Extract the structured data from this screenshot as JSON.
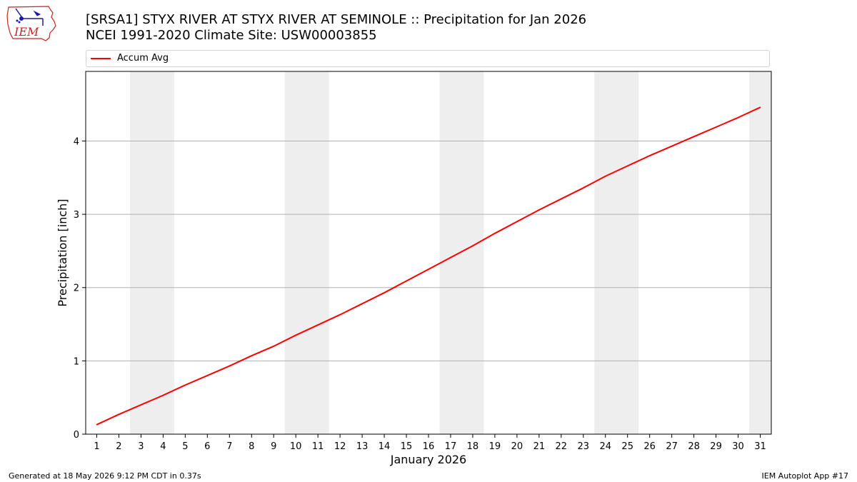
{
  "header": {
    "title_line1": "[SRSA1] STYX RIVER  AT STYX RIVER AT SEMINOLE :: Precipitation for Jan 2026",
    "title_line2": "NCEI 1991-2020 Climate Site: USW00003855"
  },
  "logo": {
    "text": "IEM",
    "text_color": "#cc2222",
    "outline_color": "#cc2222",
    "symbol_color": "#1a1aa6"
  },
  "legend": {
    "label": "Accum Avg",
    "placement": "top"
  },
  "footer": {
    "left": "Generated at 18 May 2026 9:12 PM CDT in 0.37s",
    "right": "IEM Autoplot App #17"
  },
  "chart_data": {
    "type": "line",
    "xlabel": "January 2026",
    "ylabel": "Precipitation [inch]",
    "xlim": [
      0.5,
      31.5
    ],
    "ylim": [
      0,
      4.95
    ],
    "x": [
      1,
      2,
      3,
      4,
      5,
      6,
      7,
      8,
      9,
      10,
      11,
      12,
      13,
      14,
      15,
      16,
      17,
      18,
      19,
      20,
      21,
      22,
      23,
      24,
      25,
      26,
      27,
      28,
      29,
      30,
      31
    ],
    "xticks": [
      "1",
      "2",
      "3",
      "4",
      "5",
      "6",
      "7",
      "8",
      "9",
      "10",
      "11",
      "12",
      "13",
      "14",
      "15",
      "16",
      "17",
      "18",
      "19",
      "20",
      "21",
      "22",
      "23",
      "24",
      "25",
      "26",
      "27",
      "28",
      "29",
      "30",
      "31"
    ],
    "yticks": [
      0,
      1,
      2,
      3,
      4
    ],
    "grid": "horizontal",
    "weekend_shading": [
      [
        2.5,
        4.5
      ],
      [
        9.5,
        11.5
      ],
      [
        16.5,
        18.5
      ],
      [
        23.5,
        25.5
      ],
      [
        30.5,
        31.5
      ]
    ],
    "series": [
      {
        "name": "Accum Avg",
        "color": "#ff0000",
        "values": [
          0.13,
          0.27,
          0.4,
          0.53,
          0.67,
          0.8,
          0.93,
          1.07,
          1.2,
          1.35,
          1.49,
          1.63,
          1.78,
          1.93,
          2.09,
          2.25,
          2.41,
          2.57,
          2.74,
          2.9,
          3.06,
          3.21,
          3.36,
          3.52,
          3.66,
          3.8,
          3.93,
          4.06,
          4.19,
          4.32,
          4.46
        ]
      }
    ],
    "colors": {
      "shading": "#eeeeee",
      "grid": "#b0b0b0"
    }
  }
}
